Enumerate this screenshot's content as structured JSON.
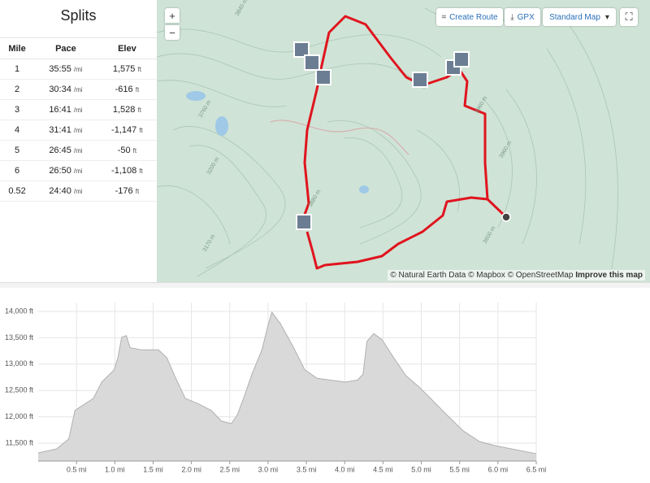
{
  "splits": {
    "title": "Splits",
    "headers": [
      "Mile",
      "Pace",
      "Elev"
    ],
    "pace_unit": "/mi",
    "elev_unit": "ft",
    "rows": [
      {
        "mile": "1",
        "pace": "35:55",
        "elev": "1,575"
      },
      {
        "mile": "2",
        "pace": "30:34",
        "elev": "-616"
      },
      {
        "mile": "3",
        "pace": "16:41",
        "elev": "1,528"
      },
      {
        "mile": "4",
        "pace": "31:41",
        "elev": "-1,147"
      },
      {
        "mile": "5",
        "pace": "26:45",
        "elev": "-50"
      },
      {
        "mile": "6",
        "pace": "26:50",
        "elev": "-1,108"
      },
      {
        "mile": "0.52",
        "pace": "24:40",
        "elev": "-176"
      }
    ]
  },
  "map": {
    "zoom_in": "+",
    "zoom_out": "−",
    "create_route": "Create Route",
    "gpx": "GPX",
    "map_style": "Standard Map",
    "attribution": "© Natural Earth Data © Mapbox © OpenStreetMap",
    "improve": "Improve this map",
    "contour_labels": [
      "3840 m",
      "3960 m",
      "3760 m",
      "3880 m",
      "3200 m",
      "3600 m",
      "3960 m",
      "3170 m"
    ]
  },
  "chart_data": {
    "type": "area",
    "color": "#d9d9d9",
    "line_color": "#b0b0b0",
    "grid": true,
    "x": [
      0,
      0.24,
      0.4,
      0.48,
      0.56,
      0.72,
      0.83,
      0.99,
      1.04,
      1.09,
      1.15,
      1.2,
      1.36,
      1.57,
      1.68,
      1.78,
      1.92,
      2.1,
      2.26,
      2.39,
      2.52,
      2.6,
      2.68,
      2.79,
      2.92,
      3.0,
      3.05,
      3.16,
      3.32,
      3.48,
      3.64,
      3.85,
      4.01,
      4.17,
      4.24,
      4.29,
      4.38,
      4.49,
      4.64,
      4.8,
      4.96,
      5.12,
      5.33,
      5.55,
      5.76,
      5.97,
      6.18,
      6.5
    ],
    "values": [
      11315,
      11390,
      11580,
      12120,
      12200,
      12350,
      12660,
      12890,
      13120,
      13510,
      13540,
      13310,
      13270,
      13270,
      13120,
      12780,
      12350,
      12240,
      12120,
      11920,
      11870,
      12040,
      12350,
      12810,
      13270,
      13740,
      13985,
      13770,
      13350,
      12890,
      12730,
      12690,
      12660,
      12700,
      12810,
      13430,
      13580,
      13460,
      13120,
      12780,
      12580,
      12350,
      12040,
      11730,
      11530,
      11450,
      11390,
      11300
    ],
    "xlim": [
      0,
      6.5
    ],
    "ylim": [
      11160,
      14170
    ],
    "xticks": [
      {
        "value": 0.5,
        "label": "0.5 mi"
      },
      {
        "value": 1.0,
        "label": "1.0 mi"
      },
      {
        "value": 1.5,
        "label": "1.5 mi"
      },
      {
        "value": 2.0,
        "label": "2.0 mi"
      },
      {
        "value": 2.5,
        "label": "2.5 mi"
      },
      {
        "value": 3.0,
        "label": "3.0 mi"
      },
      {
        "value": 3.5,
        "label": "3.5 mi"
      },
      {
        "value": 4.0,
        "label": "4.0 mi"
      },
      {
        "value": 4.5,
        "label": "4.5 mi"
      },
      {
        "value": 5.0,
        "label": "5.0 mi"
      },
      {
        "value": 5.5,
        "label": "5.5 mi"
      },
      {
        "value": 6.0,
        "label": "6.0 mi"
      },
      {
        "value": 6.5,
        "label": "6.5 mi"
      }
    ],
    "yticks": [
      {
        "value": 11500,
        "label": "11,500 ft"
      },
      {
        "value": 12000,
        "label": "12,000 ft"
      },
      {
        "value": 12500,
        "label": "12,500 ft"
      },
      {
        "value": 13000,
        "label": "13,000 ft"
      },
      {
        "value": 13500,
        "label": "13,500 ft"
      },
      {
        "value": 14000,
        "label": "14,000 ft"
      }
    ]
  }
}
